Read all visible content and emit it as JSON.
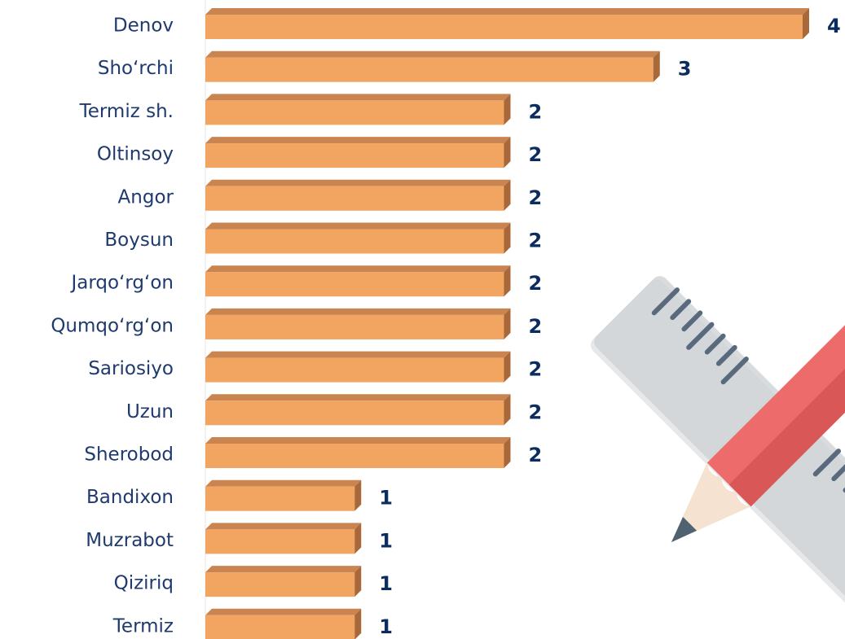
{
  "chart_data": {
    "type": "bar",
    "orientation": "horizontal",
    "categories": [
      "Denov",
      "Sho‘rchi",
      "Termiz sh.",
      "Oltinsoy",
      "Angor",
      "Boysun",
      "Jarqo‘rg‘on",
      "Qumqo‘rg‘on",
      "Sariosiyo",
      "Uzun",
      "Sherobod",
      "Bandixon",
      "Muzrabot",
      "Qiziriq",
      "Termiz"
    ],
    "values": [
      4,
      3,
      2,
      2,
      2,
      2,
      2,
      2,
      2,
      2,
      2,
      1,
      1,
      1,
      1
    ],
    "color": "#f2a461"
  }
}
